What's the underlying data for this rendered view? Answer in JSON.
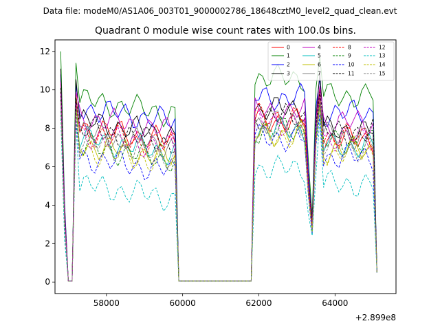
{
  "figure": {
    "suptitle": "Data file: modeM0/AS1A06_003T01_9000002786_18648cztM0_level2_quad_clean.evt",
    "background": "#ffffff"
  },
  "chart_data": {
    "type": "line",
    "title": "Quadrant 0 module wise count rates with 100.0s bins.",
    "xlabel": "",
    "ylabel": "",
    "offset_text": "+2.899e8",
    "xlim": [
      56650,
      65600
    ],
    "ylim": [
      -0.6,
      12.6
    ],
    "xticks": [
      58000,
      60000,
      62000,
      64000
    ],
    "xtick_labels": [
      "58000",
      "60000",
      "62000",
      "64000"
    ],
    "yticks": [
      0,
      2,
      4,
      6,
      8,
      10,
      12
    ],
    "ytick_labels": [
      "0",
      "2",
      "4",
      "6",
      "8",
      "10",
      "12"
    ],
    "grid": false,
    "legend_position": "top-right",
    "x": [
      56800,
      56900,
      57000,
      57100,
      57200,
      57300,
      57400,
      57500,
      57600,
      57700,
      57800,
      57900,
      58000,
      58100,
      58200,
      58300,
      58400,
      58500,
      58600,
      58700,
      58800,
      58900,
      59000,
      59100,
      59200,
      59300,
      59400,
      59500,
      59600,
      59700,
      59800,
      59900,
      60000,
      60100,
      60200,
      60300,
      60400,
      60500,
      60600,
      60700,
      60800,
      60900,
      61000,
      61100,
      61200,
      61300,
      61400,
      61500,
      61600,
      61700,
      61800,
      61900,
      62000,
      62100,
      62200,
      62300,
      62400,
      62500,
      62600,
      62700,
      62800,
      62900,
      63000,
      63100,
      63200,
      63300,
      63400,
      63500,
      63600,
      63700,
      63800,
      63900,
      64000,
      64100,
      64200,
      64300,
      64400,
      64500,
      64600,
      64700,
      64800,
      64900,
      65000,
      65100
    ],
    "series": [
      {
        "name": "0",
        "color": "#ff0000",
        "dash": "solid",
        "peak": 10.3,
        "level1": 7.9,
        "level2": 8.4,
        "level3": 7.4
      },
      {
        "name": "1",
        "color": "#008000",
        "dash": "solid",
        "peak": 12.0,
        "level1": 9.3,
        "level2": 10.6,
        "level3": 9.7
      },
      {
        "name": "2",
        "color": "#0000ff",
        "dash": "solid",
        "peak": 10.8,
        "level1": 8.9,
        "level2": 9.6,
        "level3": 8.8
      },
      {
        "name": "3",
        "color": "#000000",
        "dash": "solid",
        "peak": 11.1,
        "level1": 8.2,
        "level2": 9.0,
        "level3": 7.9
      },
      {
        "name": "4",
        "color": "#bf00bf",
        "dash": "solid",
        "peak": 10.4,
        "level1": 8.4,
        "level2": 8.9,
        "level3": 8.3
      },
      {
        "name": "5",
        "color": "#00bfbf",
        "dash": "solid",
        "peak": 9.9,
        "level1": 7.3,
        "level2": 7.9,
        "level3": 7.1
      },
      {
        "name": "6",
        "color": "#bfbf00",
        "dash": "solid",
        "peak": 9.7,
        "level1": 7.0,
        "level2": 7.7,
        "level3": 6.9
      },
      {
        "name": "7",
        "color": "#808080",
        "dash": "solid",
        "peak": 10.0,
        "level1": 7.6,
        "level2": 8.3,
        "level3": 7.6
      },
      {
        "name": "8",
        "color": "#ff0000",
        "dash": "dashed",
        "peak": 9.9,
        "level1": 7.6,
        "level2": 8.6,
        "level3": 7.6
      },
      {
        "name": "9",
        "color": "#008000",
        "dash": "dashed",
        "peak": 9.5,
        "level1": 6.9,
        "level2": 7.9,
        "level3": 7.3
      },
      {
        "name": "10",
        "color": "#0000ff",
        "dash": "dashed",
        "peak": 8.9,
        "level1": 6.3,
        "level2": 7.5,
        "level3": 6.5
      },
      {
        "name": "11",
        "color": "#000000",
        "dash": "dashed",
        "peak": 10.1,
        "level1": 7.8,
        "level2": 8.6,
        "level3": 7.8
      },
      {
        "name": "12",
        "color": "#bf00bf",
        "dash": "dashed",
        "peak": 9.8,
        "level1": 7.5,
        "level2": 8.3,
        "level3": 7.5
      },
      {
        "name": "13",
        "color": "#00bfbf",
        "dash": "dashed",
        "peak": 8.7,
        "level1": 4.9,
        "level2": 5.9,
        "level3": 5.1
      },
      {
        "name": "14",
        "color": "#bfbf00",
        "dash": "dashed",
        "peak": 9.3,
        "level1": 6.7,
        "level2": 7.6,
        "level3": 6.7
      },
      {
        "name": "15",
        "color": "#808080",
        "dash": "dashed",
        "peak": 9.3,
        "level1": 7.1,
        "level2": 7.9,
        "level3": 6.9
      }
    ]
  }
}
